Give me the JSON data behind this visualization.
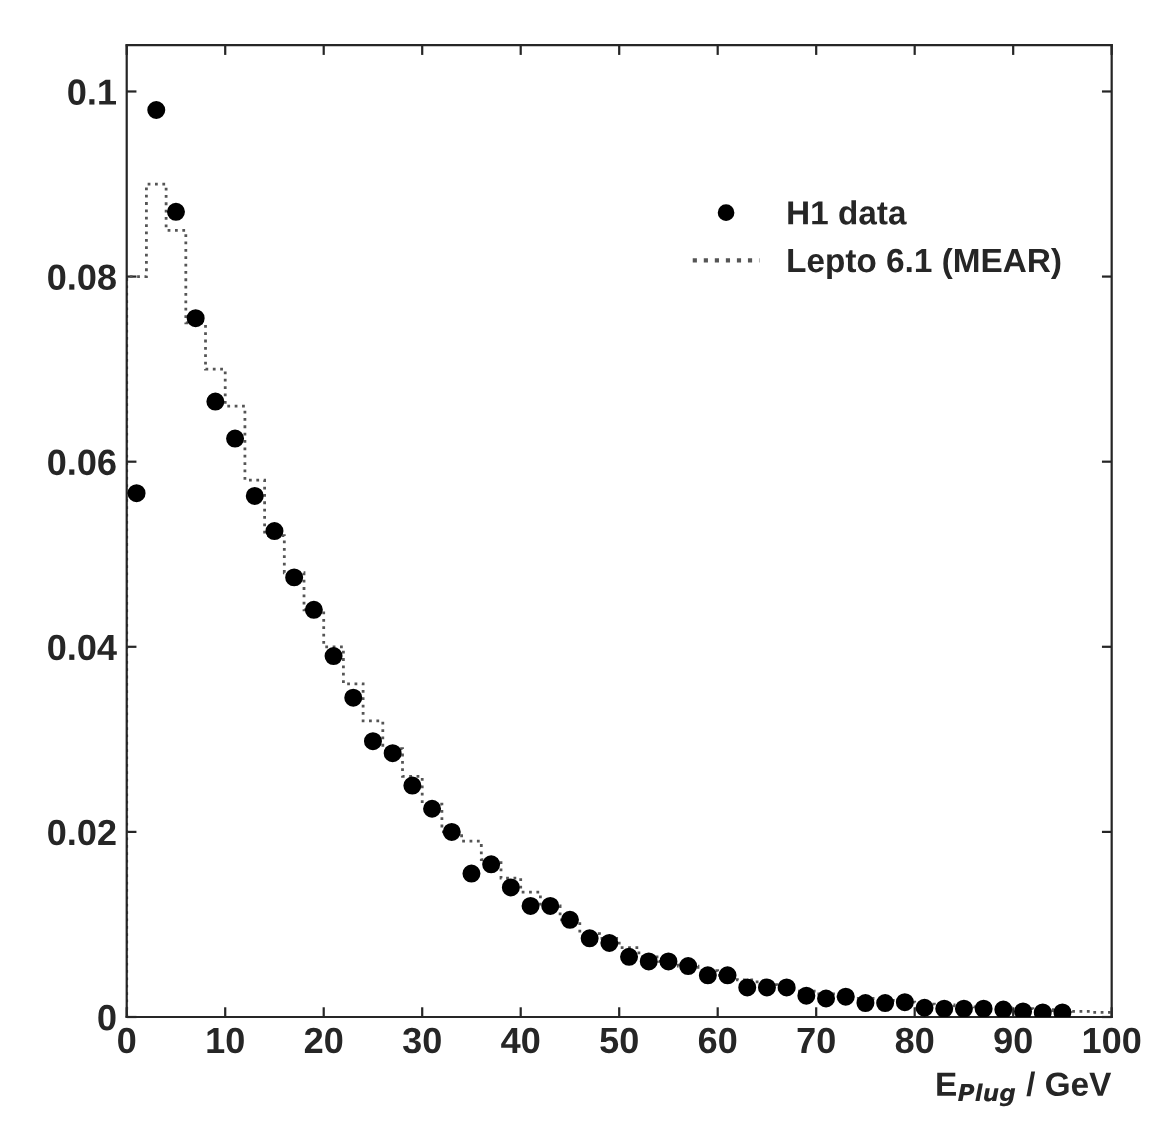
{
  "chart_data": {
    "type": "scatter",
    "xlabel": "E$_{Plug}$ / GeV",
    "xlim": [
      0,
      100
    ],
    "xticks": [
      0,
      10,
      20,
      30,
      40,
      50,
      60,
      70,
      80,
      90,
      100
    ],
    "ylim": [
      0,
      0.105
    ],
    "yticks": [
      0,
      0.02,
      0.04,
      0.06,
      0.08,
      0.1
    ],
    "grid": false,
    "legend": "right",
    "marker": "circle",
    "series": [
      {
        "name": "H1 data",
        "color": "#000000",
        "x": [
          1,
          3,
          5,
          7,
          9,
          11,
          13,
          15,
          17,
          19,
          21,
          23,
          25,
          27,
          29,
          31,
          33,
          35,
          37,
          39,
          41,
          43,
          45,
          47,
          49,
          51,
          53,
          55,
          57,
          59,
          61,
          63,
          65,
          67,
          69,
          71,
          73,
          75,
          77,
          79,
          81,
          83,
          85,
          87,
          89,
          91,
          93,
          95
        ],
        "values": [
          0.0566,
          0.098,
          0.087,
          0.0755,
          0.0665,
          0.0625,
          0.0563,
          0.0525,
          0.0475,
          0.044,
          0.039,
          0.0345,
          0.0298,
          0.0285,
          0.025,
          0.0225,
          0.02,
          0.0155,
          0.0165,
          0.014,
          0.012,
          0.012,
          0.0105,
          0.0085,
          0.008,
          0.0065,
          0.006,
          0.006,
          0.0055,
          0.0045,
          0.0045,
          0.0032,
          0.0032,
          0.0032,
          0.0023,
          0.002,
          0.0022,
          0.0015,
          0.0015,
          0.0016,
          0.001,
          0.0009,
          0.0009,
          0.0009,
          0.0008,
          0.0006,
          0.0005,
          0.0005
        ]
      },
      {
        "name": "Lepto 6.1 (MEAR)",
        "type": "histogram",
        "color": "#555555",
        "line_style": "dotted",
        "bins": [
          0,
          2,
          4,
          6,
          8,
          10,
          12,
          14,
          16,
          18,
          20,
          22,
          24,
          26,
          28,
          30,
          32,
          34,
          36,
          38,
          40,
          42,
          44,
          46,
          48,
          50,
          52,
          54,
          56,
          58,
          60,
          62,
          64,
          66,
          68,
          70,
          72,
          74,
          76,
          78,
          80,
          82,
          84,
          86,
          88,
          90,
          92,
          94,
          96,
          98,
          100
        ],
        "values": [
          0.08,
          0.09,
          0.085,
          0.075,
          0.07,
          0.066,
          0.058,
          0.052,
          0.048,
          0.044,
          0.04,
          0.036,
          0.032,
          0.029,
          0.026,
          0.023,
          0.02,
          0.019,
          0.017,
          0.015,
          0.0135,
          0.012,
          0.0105,
          0.009,
          0.0085,
          0.0075,
          0.0065,
          0.006,
          0.0055,
          0.005,
          0.0045,
          0.004,
          0.0035,
          0.003,
          0.0028,
          0.0025,
          0.0022,
          0.002,
          0.0018,
          0.0016,
          0.0014,
          0.0013,
          0.0012,
          0.0011,
          0.001,
          0.0009,
          0.0008,
          0.0007,
          0.0006,
          0.0005
        ]
      }
    ]
  }
}
